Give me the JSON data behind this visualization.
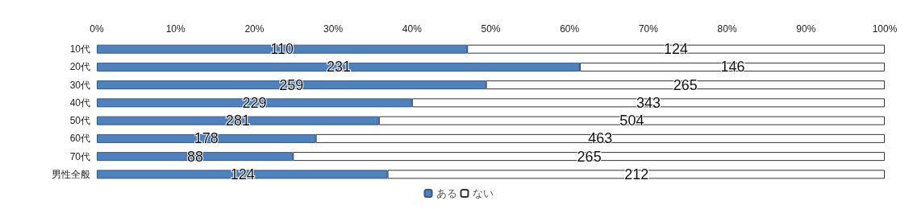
{
  "chart_data": {
    "type": "bar",
    "orientation": "horizontal",
    "stacked": true,
    "categories": [
      "10代",
      "20代",
      "30代",
      "40代",
      "50代",
      "60代",
      "70代",
      "男性全般"
    ],
    "series": [
      {
        "name": "ある",
        "color": "#4f81bd",
        "values": [
          47.0,
          61.3,
          49.4,
          40.0,
          35.8,
          27.8,
          24.9,
          36.9
        ]
      },
      {
        "name": "ない",
        "color": "#ffffff",
        "values": [
          53.0,
          38.7,
          50.6,
          60.0,
          64.2,
          72.2,
          75.1,
          63.1
        ]
      }
    ],
    "annotations": [
      {
        "text": "110",
        "x": 23.5,
        "y": "10代"
      },
      {
        "text": "124",
        "x": 73.5,
        "y": "10代"
      },
      {
        "text": "231",
        "x": 30.7,
        "y": "20代"
      },
      {
        "text": "146",
        "x": 80.7,
        "y": "20代"
      },
      {
        "text": "259",
        "x": 24.7,
        "y": "30代"
      },
      {
        "text": "265",
        "x": 74.7,
        "y": "30代"
      },
      {
        "text": "229",
        "x": 20.0,
        "y": "40代"
      },
      {
        "text": "343",
        "x": 70.0,
        "y": "40代"
      },
      {
        "text": "281",
        "x": 17.9,
        "y": "50代"
      },
      {
        "text": "504",
        "x": 67.9,
        "y": "50代"
      },
      {
        "text": "178",
        "x": 13.9,
        "y": "60代"
      },
      {
        "text": "463",
        "x": 63.9,
        "y": "60代"
      },
      {
        "text": "88",
        "x": 12.5,
        "y": "70代"
      },
      {
        "text": "265",
        "x": 62.5,
        "y": "70代"
      },
      {
        "text": "124",
        "x": 18.5,
        "y": "男性全般"
      },
      {
        "text": "212",
        "x": 68.5,
        "y": "男性全般"
      }
    ],
    "xlim": [
      0,
      100
    ],
    "xticks": [
      {
        "value": 0,
        "label": "0%"
      },
      {
        "value": 10,
        "label": "10%"
      },
      {
        "value": 20,
        "label": "20%"
      },
      {
        "value": 30,
        "label": "30%"
      },
      {
        "value": 40,
        "label": "40%"
      },
      {
        "value": 50,
        "label": "50%"
      },
      {
        "value": 60,
        "label": "60%"
      },
      {
        "value": 70,
        "label": "70%"
      },
      {
        "value": 80,
        "label": "80%"
      },
      {
        "value": 90,
        "label": "90%"
      },
      {
        "value": 100,
        "label": "100%"
      }
    ],
    "legend": "bottom",
    "grid": false
  }
}
